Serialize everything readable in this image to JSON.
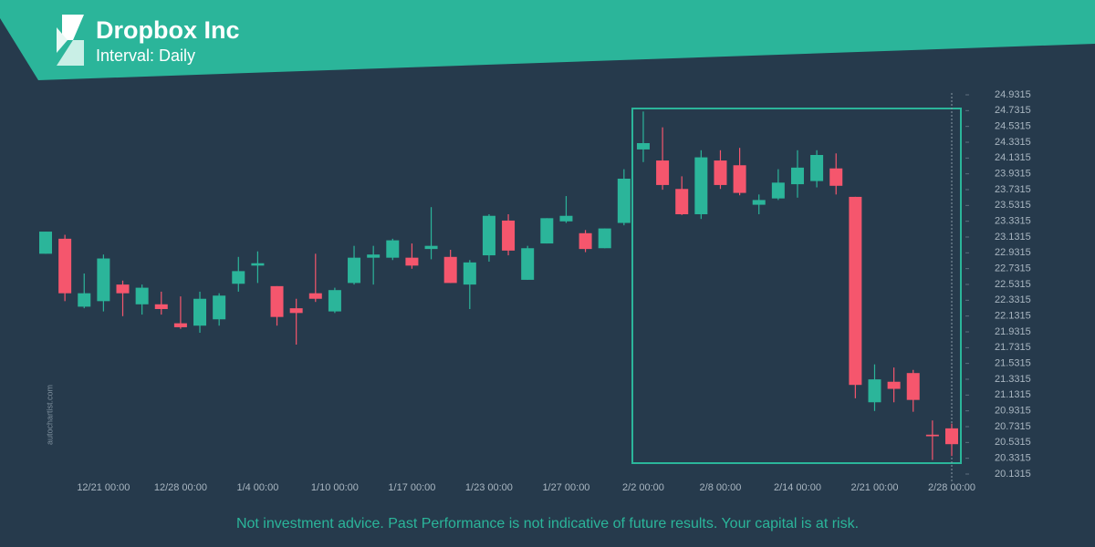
{
  "chart_data": {
    "type": "candlestick",
    "title": "Dropbox Inc",
    "subtitle": "Interval: Daily",
    "watermark": "autochartist.com",
    "disclaimer": "Not investment advice. Past Performance is not indicative of future results. Your capital is at risk.",
    "up_color": "#2bb59a",
    "down_color": "#f5566d",
    "categories": [
      null,
      null,
      null,
      "12/21 00:00",
      null,
      null,
      null,
      "12/28 00:00",
      null,
      null,
      null,
      "1/4 00:00",
      null,
      null,
      null,
      "1/10 00:00",
      null,
      null,
      null,
      "1/17 00:00",
      null,
      null,
      null,
      "1/23 00:00",
      null,
      null,
      null,
      "1/27 00:00",
      null,
      null,
      null,
      "2/2 00:00",
      null,
      null,
      null,
      "2/8 00:00",
      null,
      null,
      null,
      "2/14 00:00",
      null,
      null,
      null,
      "2/21 00:00",
      null,
      null,
      null,
      "2/28 00:00"
    ],
    "open": [
      22.92,
      23.11,
      22.25,
      22.32,
      22.53,
      22.28,
      22.28,
      22.04,
      22.01,
      22.09,
      22.54,
      22.77,
      22.51,
      22.23,
      22.42,
      22.19,
      22.55,
      22.87,
      22.87,
      22.87,
      22.98,
      22.88,
      22.53,
      22.9,
      23.34,
      22.59,
      23.05,
      23.33,
      23.18,
      22.99,
      23.31,
      24.24,
      24.1,
      23.74,
      23.42,
      24.1,
      24.04,
      23.54,
      23.62,
      23.8,
      23.84,
      24.0,
      23.64,
      21.04,
      21.3,
      21.41,
      20.63,
      20.71
    ],
    "high": [
      23.2,
      23.16,
      22.67,
      22.91,
      22.58,
      22.53,
      22.44,
      22.38,
      22.44,
      22.42,
      22.88,
      22.95,
      22.51,
      22.35,
      22.92,
      22.49,
      23.02,
      23.02,
      23.11,
      23.05,
      23.51,
      22.97,
      22.84,
      23.42,
      23.42,
      23.02,
      23.37,
      23.65,
      23.22,
      23.24,
      23.99,
      24.72,
      24.52,
      23.9,
      24.23,
      24.23,
      24.26,
      23.67,
      23.99,
      24.23,
      24.23,
      24.19,
      23.64,
      21.52,
      21.48,
      21.45,
      20.81,
      20.77
    ],
    "low": [
      22.92,
      22.32,
      22.23,
      22.19,
      22.13,
      22.15,
      22.15,
      21.97,
      21.92,
      22.01,
      22.44,
      22.55,
      22.01,
      21.77,
      22.31,
      22.17,
      22.53,
      22.53,
      22.84,
      22.73,
      22.85,
      22.55,
      22.22,
      22.82,
      22.9,
      22.59,
      23.05,
      23.31,
      22.94,
      22.99,
      23.28,
      24.08,
      23.73,
      23.41,
      23.36,
      23.74,
      23.66,
      23.42,
      23.6,
      23.63,
      23.76,
      23.67,
      21.09,
      20.93,
      21.04,
      20.92,
      20.31,
      20.36
    ],
    "close": [
      23.2,
      22.42,
      22.42,
      22.86,
      22.42,
      22.49,
      22.22,
      21.99,
      22.35,
      22.39,
      22.7,
      22.8,
      22.12,
      22.17,
      22.35,
      22.46,
      22.87,
      22.91,
      23.09,
      22.77,
      23.02,
      22.55,
      22.81,
      23.4,
      22.96,
      22.99,
      23.37,
      23.4,
      22.98,
      23.24,
      23.87,
      24.32,
      23.79,
      23.42,
      24.14,
      23.79,
      23.69,
      23.6,
      23.82,
      24.01,
      24.17,
      23.78,
      21.26,
      21.33,
      21.21,
      21.07,
      20.61,
      20.51
    ],
    "ylim": [
      20.1315,
      24.9315
    ],
    "yticks": [
      20.1315,
      20.3315,
      20.5315,
      20.7315,
      20.9315,
      21.1315,
      21.3315,
      21.5315,
      21.7315,
      21.9315,
      22.1315,
      22.3315,
      22.5315,
      22.7315,
      22.9315,
      23.1315,
      23.3315,
      23.5315,
      23.7315,
      23.9315,
      24.1315,
      24.3315,
      24.5315,
      24.7315,
      24.9315
    ]
  }
}
